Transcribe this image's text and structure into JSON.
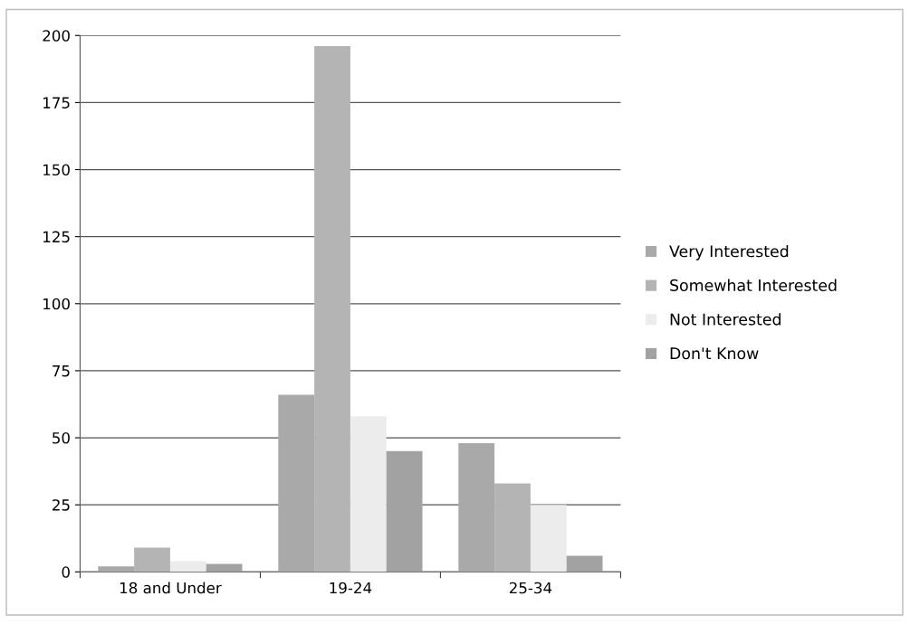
{
  "chart_data": {
    "type": "bar",
    "categories": [
      "18 and Under",
      "19-24",
      "25-34"
    ],
    "series": [
      {
        "name": "Very Interested",
        "color": "#a9a9a9",
        "values": [
          2,
          66,
          48
        ]
      },
      {
        "name": "Somewhat Interested",
        "color": "#b4b4b4",
        "values": [
          9,
          196,
          33
        ]
      },
      {
        "name": "Not Interested",
        "color": "#ececec",
        "values": [
          4,
          58,
          25
        ]
      },
      {
        "name": "Don't Know",
        "color": "#a2a2a2",
        "values": [
          3,
          45,
          6
        ]
      }
    ],
    "ylim": [
      0,
      200
    ],
    "yticks": [
      0,
      25,
      50,
      75,
      100,
      125,
      150,
      175,
      200
    ],
    "grid": "y",
    "legend": "right"
  }
}
